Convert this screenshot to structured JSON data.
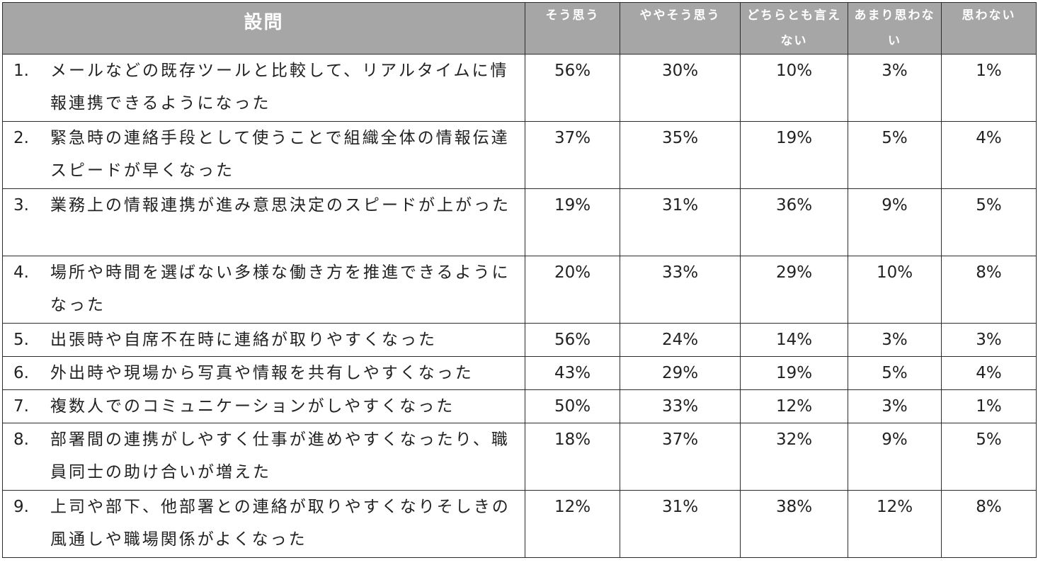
{
  "header": {
    "question": "設問",
    "options": [
      "そう思う",
      "ややそう思う",
      "どちらとも言えない",
      "あまり思わない",
      "思わない"
    ]
  },
  "rows": [
    {
      "num": "1.",
      "text": "メールなどの既存ツールと比較して、リアルタイムに情報連携できるようになった",
      "values": [
        "56%",
        "30%",
        "10%",
        "3%",
        "1%"
      ]
    },
    {
      "num": "2.",
      "text": "緊急時の連絡手段として使うことで組織全体の情報伝達スピードが早くなった",
      "values": [
        "37%",
        "35%",
        "19%",
        "5%",
        "4%"
      ]
    },
    {
      "num": "3.",
      "text": "業務上の情報連携が進み意思決定のスピードが上がった",
      "values": [
        "19%",
        "31%",
        "36%",
        "9%",
        "5%"
      ]
    },
    {
      "num": "4.",
      "text": "場所や時間を選ばない多様な働き方を推進できるようになった",
      "values": [
        "20%",
        "33%",
        "29%",
        "10%",
        "8%"
      ]
    },
    {
      "num": "5.",
      "text": "出張時や自席不在時に連絡が取りやすくなった",
      "values": [
        "56%",
        "24%",
        "14%",
        "3%",
        "3%"
      ]
    },
    {
      "num": "6.",
      "text": "外出時や現場から写真や情報を共有しやすくなった",
      "values": [
        "43%",
        "29%",
        "19%",
        "5%",
        "4%"
      ]
    },
    {
      "num": "7.",
      "text": "複数人でのコミュニケーションがしやすくなった",
      "values": [
        "50%",
        "33%",
        "12%",
        "3%",
        "1%"
      ]
    },
    {
      "num": "8.",
      "text": "部署間の連携がしやすく仕事が進めやすくなったり、職員同士の助け合いが増えた",
      "values": [
        "18%",
        "37%",
        "32%",
        "9%",
        "5%"
      ]
    },
    {
      "num": "9.",
      "text": "上司や部下、他部署との連絡が取りやすくなりそしきの風通しや職場関係がよくなった",
      "values": [
        "12%",
        "31%",
        "38%",
        "12%",
        "8%"
      ]
    }
  ]
}
